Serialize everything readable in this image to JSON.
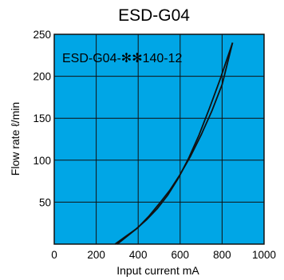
{
  "chart_data": {
    "type": "line",
    "title": "ESD-G04",
    "xlabel": "Input current   mA",
    "ylabel": "Flow rate  ℓ/min",
    "xlim": [
      0,
      1000
    ],
    "ylim": [
      0,
      250
    ],
    "x_ticks": [
      0,
      200,
      400,
      600,
      800,
      1000
    ],
    "y_ticks": [
      50,
      100,
      150,
      200,
      250
    ],
    "grid": true,
    "background_color": "#00a6e6",
    "line_color": "#111111",
    "series_label": "ESD-G04-✻✻140-12",
    "series": [
      {
        "x": [
          300,
          350,
          400,
          450,
          500,
          550,
          600,
          650,
          700,
          750,
          800,
          850
        ],
        "y": [
          0,
          10,
          20,
          33,
          48,
          64,
          83,
          105,
          130,
          158,
          190,
          240
        ]
      },
      {
        "x": [
          290,
          340,
          390,
          440,
          490,
          540,
          590,
          640,
          690,
          740,
          790,
          850
        ],
        "y": [
          0,
          9,
          18,
          29,
          42,
          58,
          78,
          102,
          130,
          162,
          196,
          240
        ]
      }
    ]
  }
}
